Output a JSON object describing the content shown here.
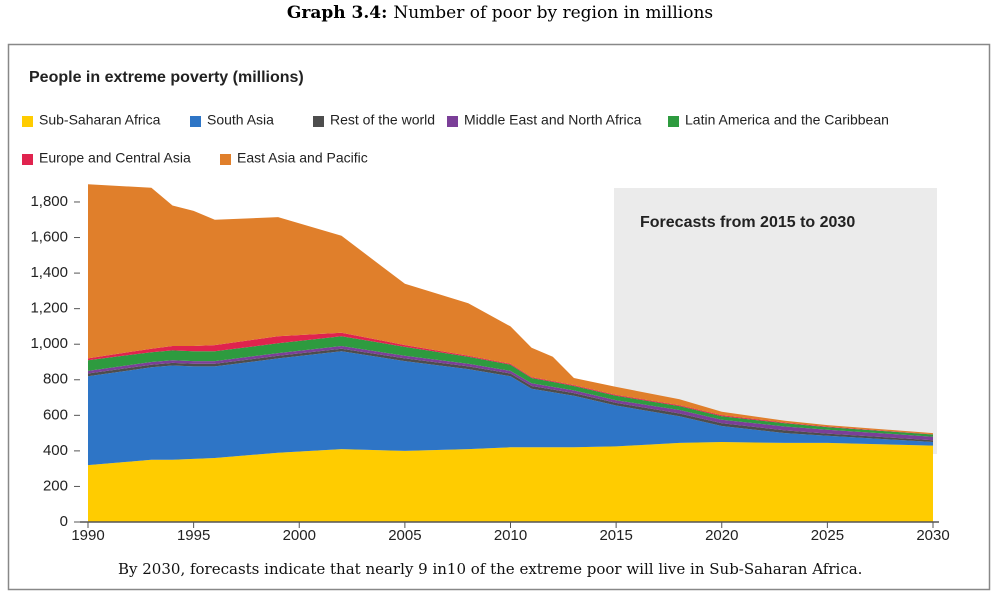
{
  "caption_label": "Graph 3.4:",
  "caption_text": "Number of poor by region in millions",
  "note": "By 2030, forecasts indicate that nearly 9 in10 of the extreme poor will live in Sub-Saharan Africa.",
  "chart_data": {
    "type": "stacked_area",
    "title": "People in extreme poverty (millions)",
    "annotation": "Forecasts from 2015 to 2030",
    "x": [
      1990,
      1993,
      1994,
      1995,
      1996,
      1999,
      2002,
      2005,
      2008,
      2010,
      2011,
      2012,
      2013,
      2015,
      2018,
      2020,
      2023,
      2025,
      2030
    ],
    "series": [
      {
        "name": "Sub-Saharan Africa",
        "color": "#ffcc00",
        "values": [
          320,
          350,
          350,
          355,
          360,
          390,
          410,
          400,
          410,
          420,
          420,
          420,
          420,
          425,
          445,
          450,
          445,
          445,
          430
        ]
      },
      {
        "name": "South Asia",
        "color": "#2e75c6",
        "values": [
          500,
          520,
          530,
          520,
          515,
          530,
          550,
          505,
          450,
          400,
          330,
          310,
          290,
          230,
          150,
          90,
          55,
          40,
          20
        ]
      },
      {
        "name": "Rest of the world",
        "color": "#4d4d4d",
        "values": [
          15,
          15,
          15,
          15,
          15,
          15,
          15,
          15,
          15,
          15,
          15,
          15,
          15,
          15,
          15,
          15,
          15,
          12,
          10
        ]
      },
      {
        "name": "Middle East and North Africa",
        "color": "#7b3f98",
        "values": [
          15,
          15,
          15,
          15,
          15,
          15,
          15,
          15,
          15,
          15,
          15,
          15,
          15,
          15,
          20,
          20,
          22,
          22,
          20
        ]
      },
      {
        "name": "Latin America and the Caribbean",
        "color": "#2e9b3f",
        "values": [
          60,
          55,
          55,
          55,
          55,
          55,
          55,
          50,
          40,
          35,
          30,
          28,
          25,
          25,
          22,
          20,
          18,
          15,
          12
        ]
      },
      {
        "name": "Europe and Central Asia",
        "color": "#e0234e",
        "values": [
          10,
          20,
          25,
          30,
          35,
          40,
          20,
          10,
          5,
          5,
          5,
          5,
          5,
          5,
          5,
          5,
          4,
          3,
          2
        ]
      },
      {
        "name": "East Asia and Pacific",
        "color": "#e07f2b",
        "values": [
          980,
          905,
          790,
          760,
          705,
          670,
          545,
          345,
          295,
          210,
          165,
          137,
          40,
          45,
          33,
          20,
          11,
          8,
          6
        ]
      }
    ],
    "xlim": [
      1990,
      2030
    ],
    "xticks": [
      1990,
      1995,
      2000,
      2005,
      2010,
      2015,
      2020,
      2025,
      2030
    ],
    "ylim": [
      0,
      1900
    ],
    "yticks": [
      0,
      200,
      400,
      600,
      800,
      {
        "value": 1000,
        "label": "1,000"
      },
      {
        "value": 1200,
        "label": "1,200"
      },
      {
        "value": 1400,
        "label": "1,400"
      },
      {
        "value": 1600,
        "label": "1,600"
      },
      {
        "value": 1800,
        "label": "1,800"
      }
    ],
    "grid": false
  }
}
